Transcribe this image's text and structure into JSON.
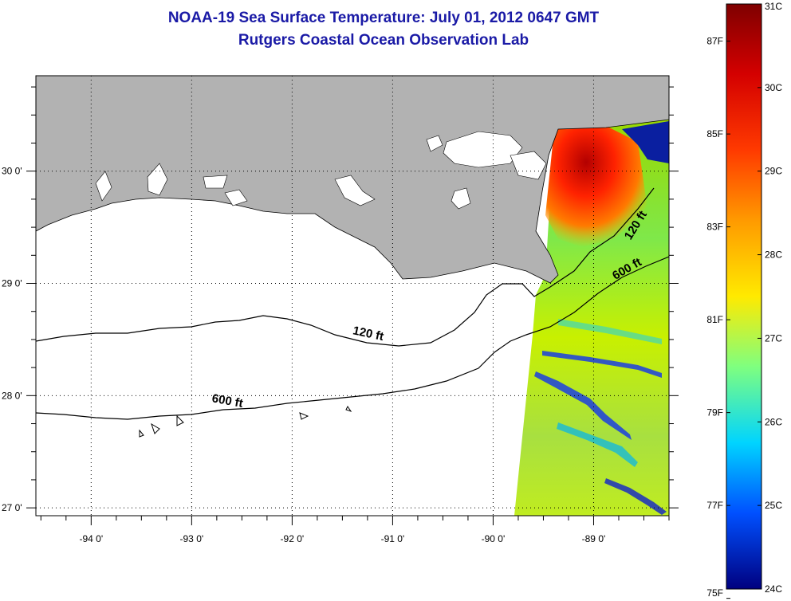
{
  "title": "NOAA-19 Sea Surface Temperature:  July 01, 2012 0647 GMT",
  "subtitle": "Rutgers Coastal Ocean Observation Lab",
  "colors": {
    "land": "#b2b2b2",
    "water": "#ffffff",
    "title": "#1a1aa6"
  },
  "map": {
    "lon_range": [
      -94.55,
      -88.25
    ],
    "lat_range": [
      26.93,
      30.85
    ],
    "lon_ticks": [
      {
        "value": -94,
        "label": "-94 0'"
      },
      {
        "value": -93,
        "label": "-93 0'"
      },
      {
        "value": -92,
        "label": "-92 0'"
      },
      {
        "value": -91,
        "label": "-91 0'"
      },
      {
        "value": -90,
        "label": "-90 0'"
      },
      {
        "value": -89,
        "label": "-89 0'"
      }
    ],
    "lat_ticks": [
      {
        "value": 30,
        "label": "30 0'"
      },
      {
        "value": 29,
        "label": "29 0'"
      },
      {
        "value": 28,
        "label": "28 0'"
      },
      {
        "value": 27,
        "label": "27 0'"
      }
    ],
    "contour_labels": [
      {
        "text": "120 ft",
        "lon": -91.25,
        "lat": 28.52,
        "angle": 12
      },
      {
        "text": "600 ft",
        "lon": -92.65,
        "lat": 27.92,
        "angle": 10
      },
      {
        "text": "120 ft",
        "lon": -88.55,
        "lat": 29.5,
        "angle": -58
      },
      {
        "text": "600 ft",
        "lon": -88.65,
        "lat": 29.1,
        "angle": -30
      }
    ]
  },
  "colorbar": {
    "c_min": 24,
    "c_max": 31,
    "celsius_labels": [
      "31C",
      "30C",
      "29C",
      "28C",
      "27C",
      "26C",
      "25C",
      "24C"
    ],
    "fahrenheit_labels": [
      "87F",
      "85F",
      "83F",
      "81F",
      "79F",
      "77F",
      "75F"
    ],
    "fahrenheit_values": [
      87,
      85,
      83,
      81,
      79,
      77,
      75
    ]
  }
}
